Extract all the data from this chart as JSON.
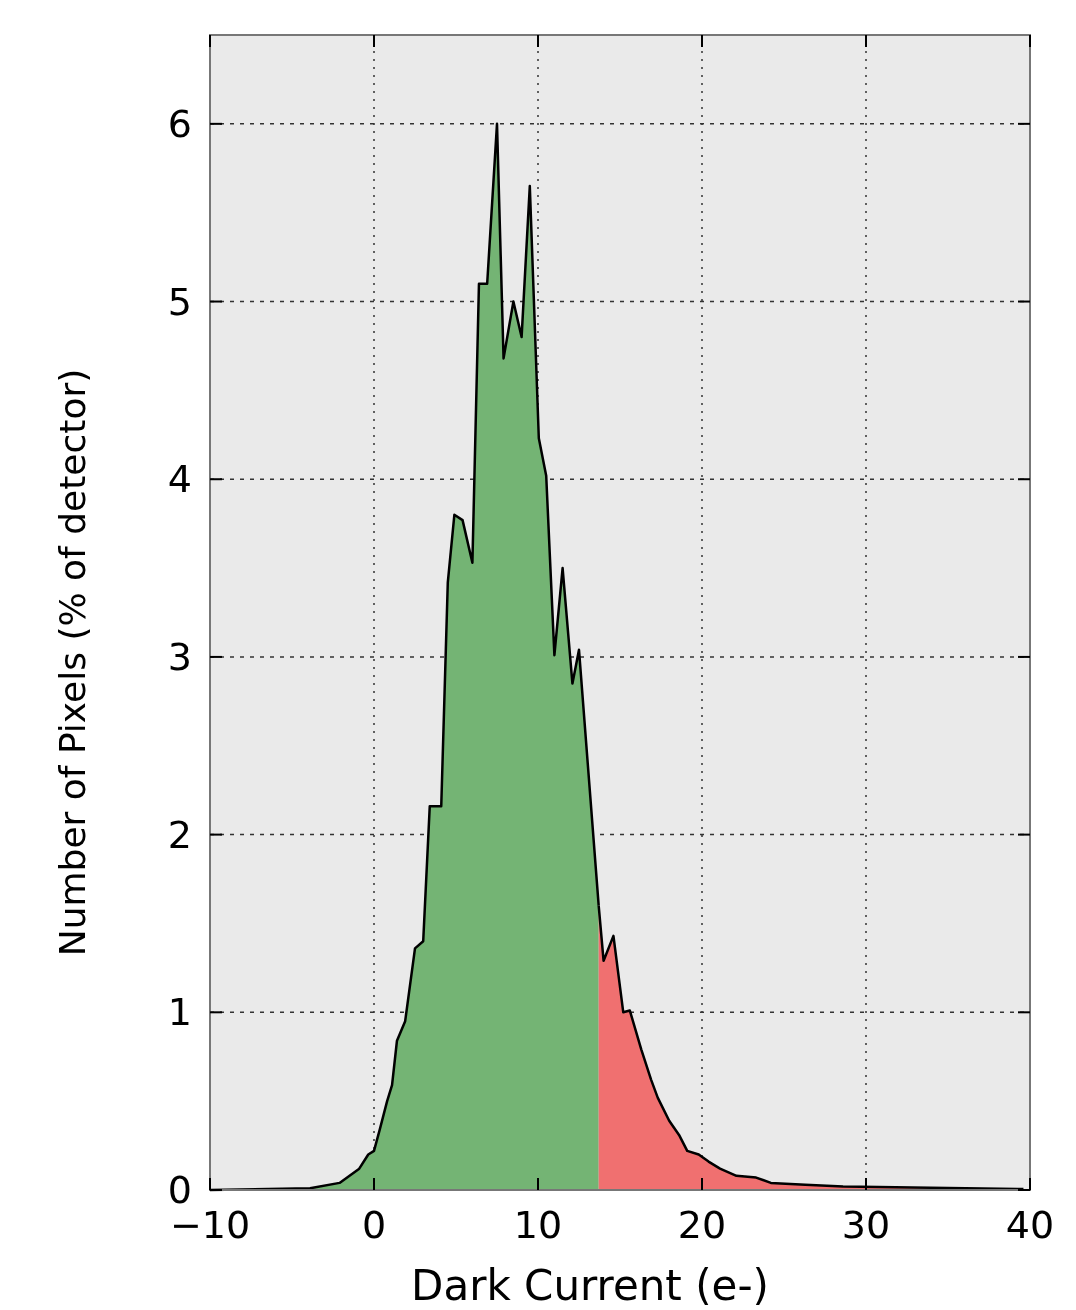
{
  "chart_data": {
    "type": "area",
    "xlabel": "Dark Current (e-)",
    "ylabel": "Number of Pixels (% of detector)",
    "xlim": [
      -10,
      40
    ],
    "ylim": [
      0,
      6.5
    ],
    "xticks": [
      {
        "value": -10,
        "label": "−10"
      },
      0,
      10,
      20,
      30,
      {
        "value": 40,
        "label": "40"
      }
    ],
    "yticks": [
      0,
      1,
      2,
      3,
      4,
      5,
      6
    ],
    "grid": true,
    "series": [
      {
        "color": "#74b474",
        "x": [
          -10,
          -3.9,
          -2.1,
          -0.9,
          -0.35,
          0,
          0.35,
          0.8,
          1.1,
          1.4,
          1.9,
          2.5,
          3.0,
          3.4,
          4.1,
          4.5,
          4.9,
          5.4,
          6.0,
          6.4,
          6.9,
          7.5,
          7.9,
          8.5,
          9.0,
          9.5,
          10.05,
          10.5,
          11.0,
          11.5,
          12.1,
          12.5,
          13.7
        ],
        "values": [
          0,
          0.01,
          0.04,
          0.12,
          0.2,
          0.22,
          0.34,
          0.5,
          0.59,
          0.84,
          0.95,
          1.36,
          1.4,
          2.16,
          2.16,
          3.42,
          3.8,
          3.77,
          3.53,
          5.1,
          5.1,
          6.0,
          4.68,
          5.0,
          4.8,
          5.65,
          4.23,
          4.02,
          3.01,
          3.5,
          2.85,
          3.04,
          1.6
        ]
      },
      {
        "color": "#f07070",
        "x": [
          13.7,
          14.0,
          14.6,
          15.2,
          15.6,
          16.3,
          16.9,
          17.3,
          18.0,
          18.6,
          19.1,
          19.8,
          20.4,
          21.1,
          22.1,
          23.3,
          24.2,
          26.3,
          28.6,
          39.6
        ],
        "values": [
          1.6,
          1.29,
          1.43,
          1.0,
          1.01,
          0.79,
          0.62,
          0.52,
          0.39,
          0.31,
          0.22,
          0.2,
          0.16,
          0.12,
          0.08,
          0.07,
          0.04,
          0.03,
          0.02,
          0.005
        ]
      }
    ]
  }
}
